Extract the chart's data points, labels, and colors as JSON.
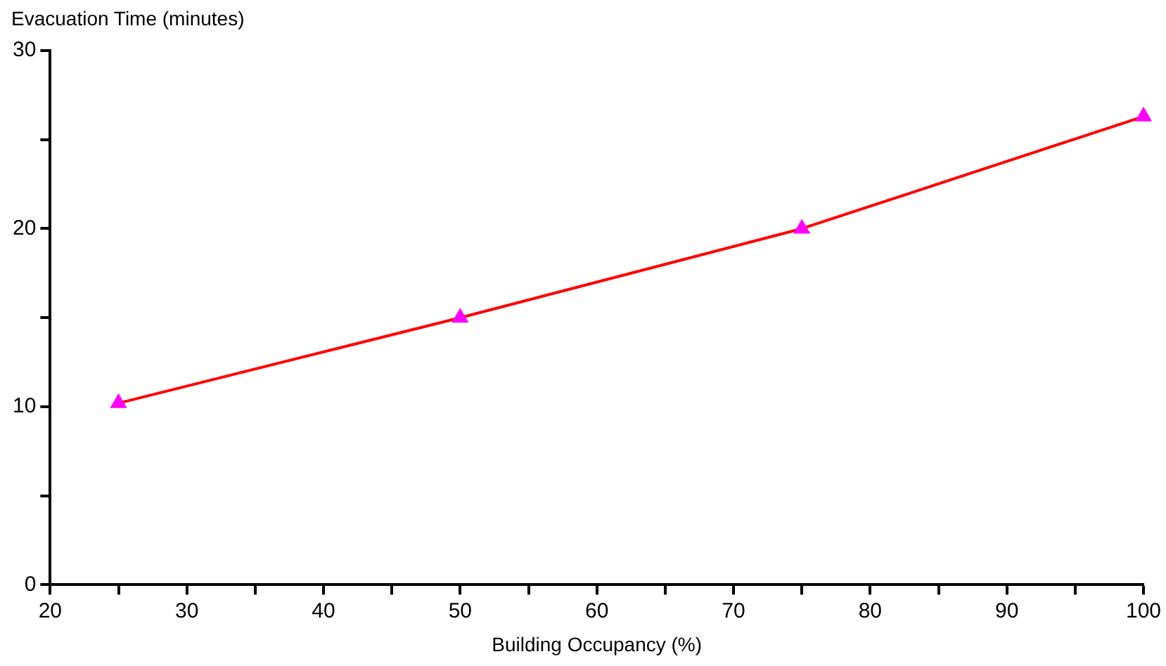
{
  "chart_data": {
    "type": "line",
    "ylabel": "Evacuation Time (minutes)",
    "xlabel": "Building Occupancy (%)",
    "x": [
      25,
      50,
      75,
      100
    ],
    "series": [
      {
        "color": "#ff0000",
        "colors": [
          "#ff00ff",
          "#ff00ff",
          "#ff00ff",
          "#ff00ff"
        ],
        "values": [
          10.2,
          15.0,
          20.0,
          26.3
        ]
      }
    ],
    "xlim": [
      20,
      100
    ],
    "xticks": [
      20,
      {
        "value": 25,
        "label": null
      },
      30,
      {
        "value": 35,
        "label": null
      },
      40,
      {
        "value": 45,
        "label": null
      },
      50,
      {
        "value": 55,
        "label": null
      },
      60,
      {
        "value": 65,
        "label": null
      },
      70,
      {
        "value": 75,
        "label": null
      },
      80,
      {
        "value": 85,
        "label": null
      },
      90,
      {
        "value": 95,
        "label": null
      },
      100
    ],
    "ylim": [
      0,
      30
    ],
    "yticks": [
      0,
      {
        "value": 5,
        "label": null
      },
      10,
      {
        "value": 15,
        "label": null
      },
      20,
      {
        "value": 25,
        "label": null
      },
      30
    ],
    "marker": "triangle",
    "line_style": "solid",
    "grid": false,
    "legend": false
  }
}
